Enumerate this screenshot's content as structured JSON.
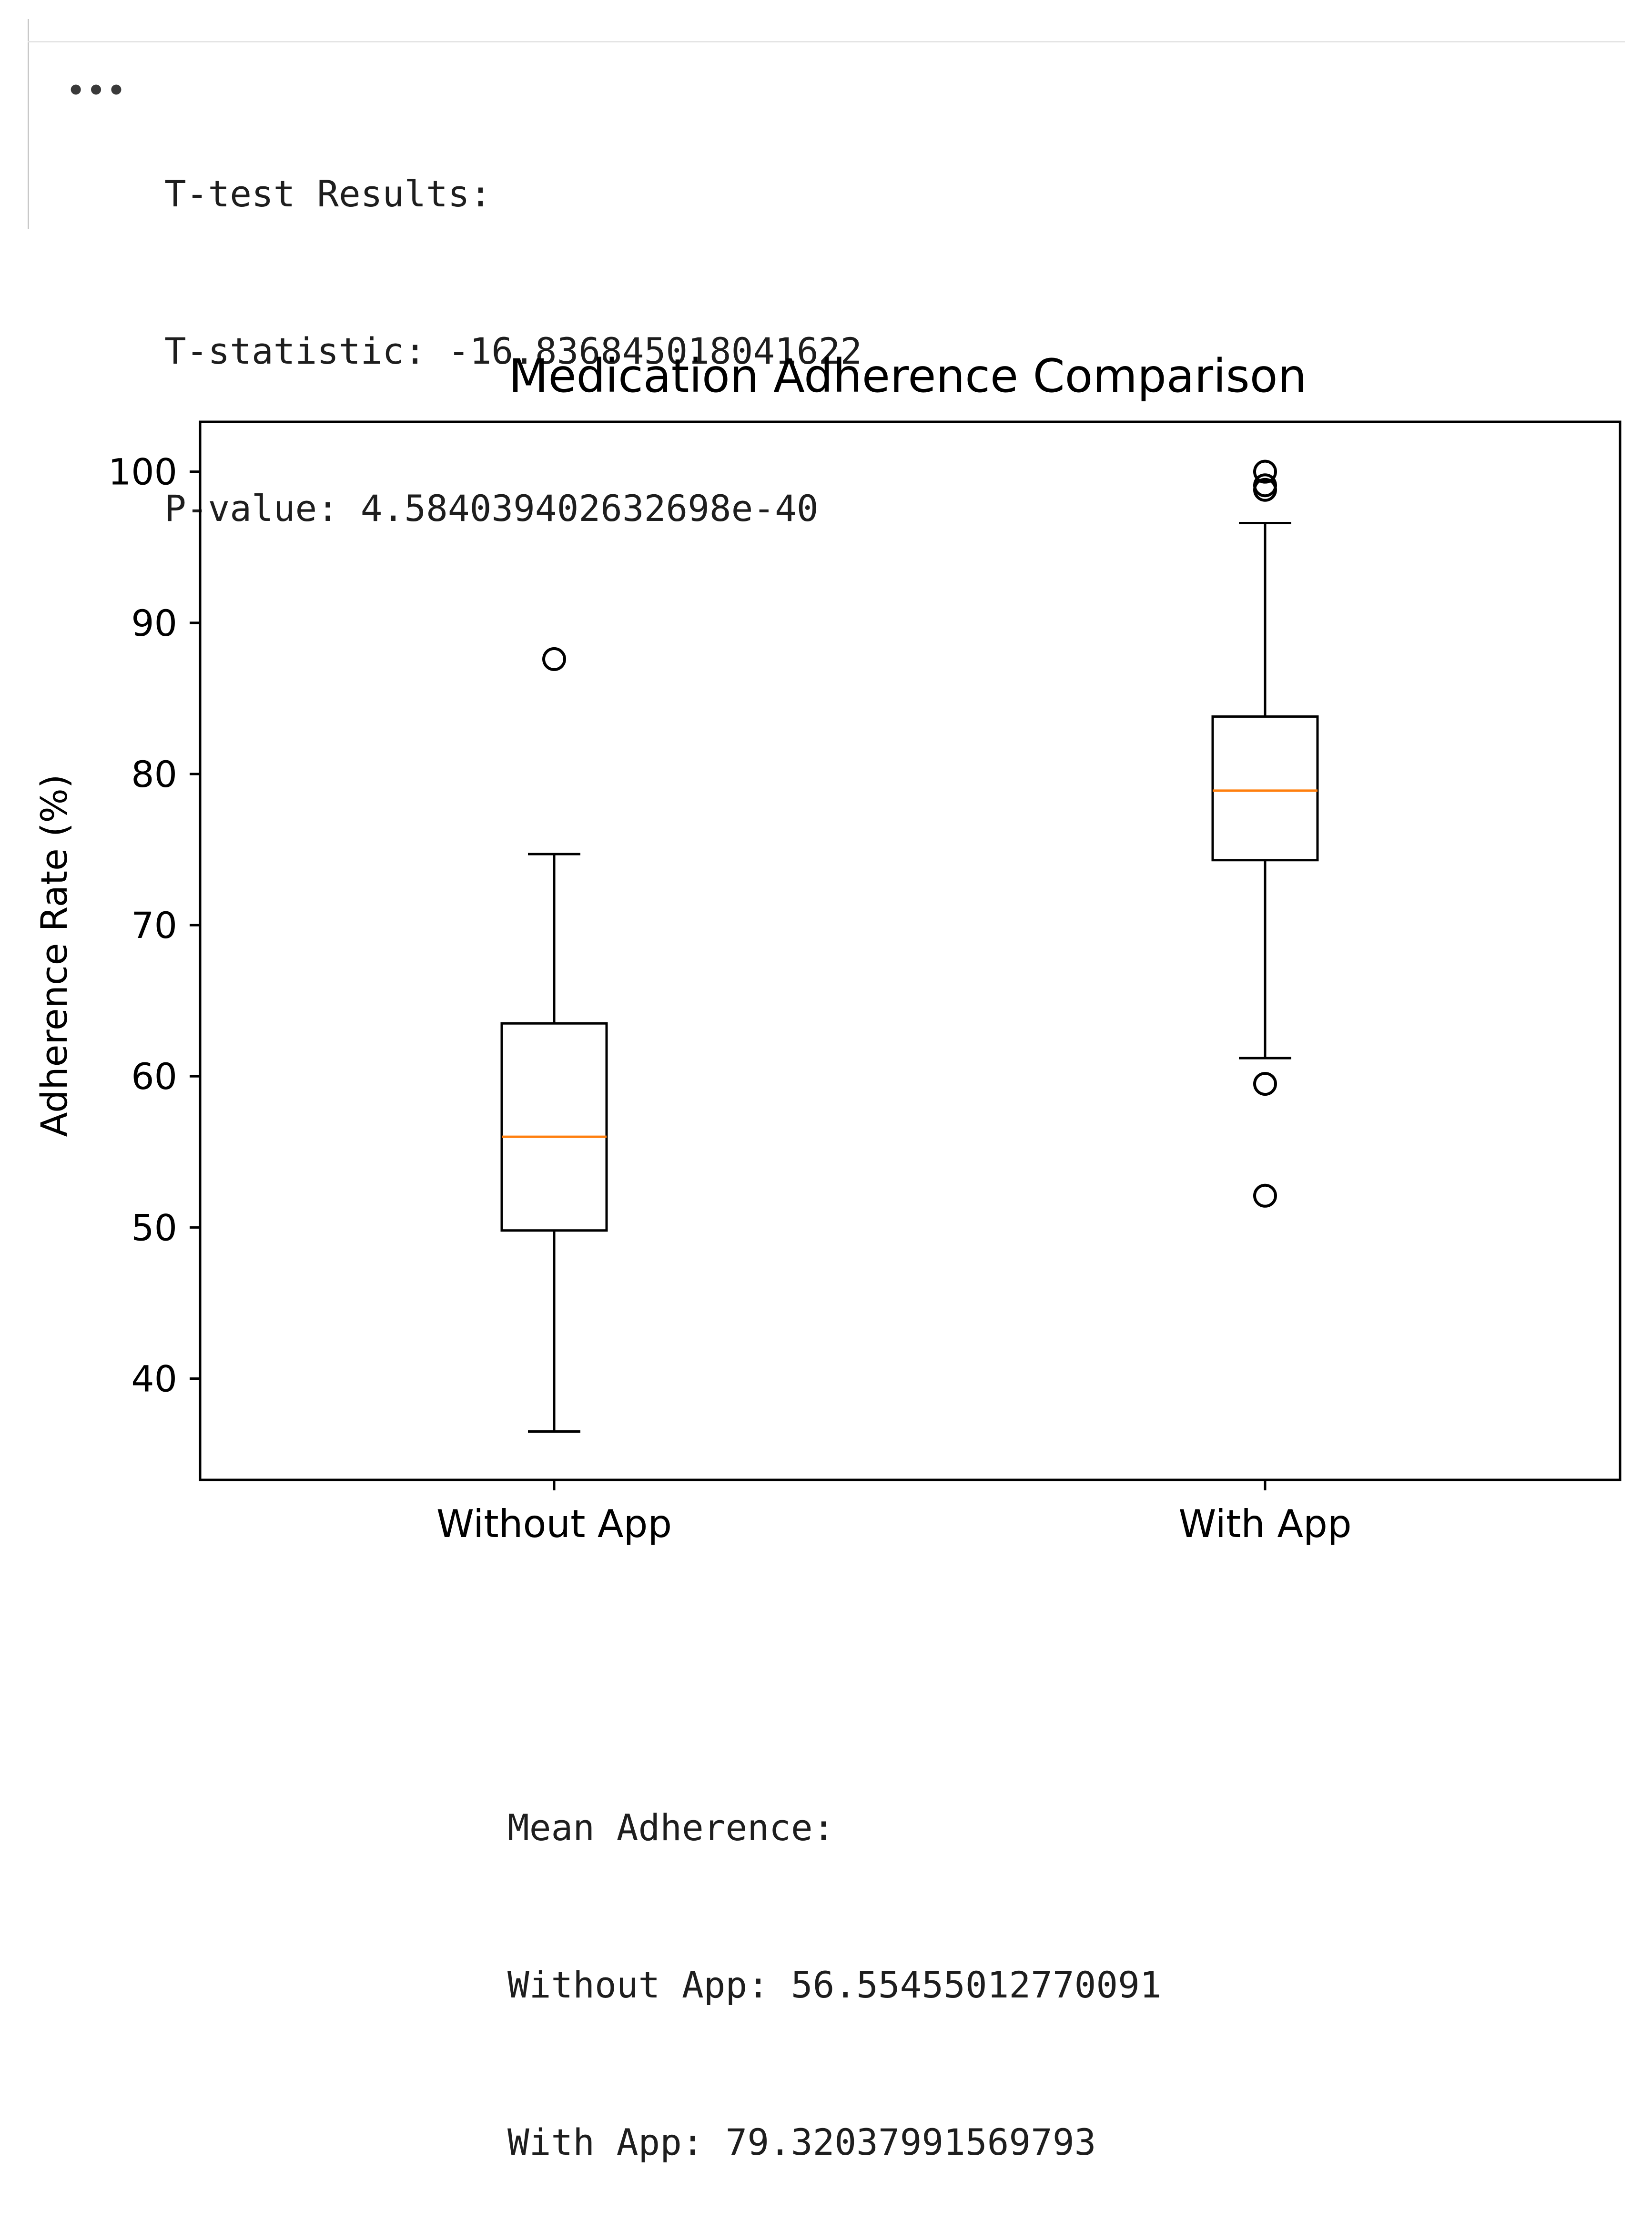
{
  "output_cell": {
    "ellipsis_icon": "more-horizontal-icon",
    "ttest_lines": [
      "T-test Results:",
      "T-statistic: -16.836845018041622",
      "P-value: 4.584039402632698e-40"
    ],
    "mean_lines": [
      "Mean Adherence:",
      "Without App: 56.55455012770091",
      "With App: 79.32037991569793"
    ]
  },
  "colors": {
    "median": "#ff7f0e",
    "box": "#000000",
    "text": "#1e1e1e"
  },
  "chart_data": {
    "type": "boxplot",
    "title": "Medication Adherence Comparison",
    "xlabel": "",
    "ylabel": "Adherence Rate (%)",
    "ylim": [
      33.3,
      103.3
    ],
    "yticks": [
      40,
      50,
      60,
      70,
      80,
      90,
      100
    ],
    "categories": [
      "Without App",
      "With App"
    ],
    "series": [
      {
        "name": "Without App",
        "whisker_low": 36.5,
        "q1": 49.8,
        "median": 56.0,
        "q3": 63.5,
        "whisker_high": 74.7,
        "outliers": [
          87.6
        ]
      },
      {
        "name": "With App",
        "whisker_low": 61.2,
        "q1": 74.3,
        "median": 78.9,
        "q3": 83.8,
        "whisker_high": 96.6,
        "outliers": [
          100.0,
          99.1,
          98.8,
          59.5,
          52.1
        ]
      }
    ],
    "grid": false
  }
}
